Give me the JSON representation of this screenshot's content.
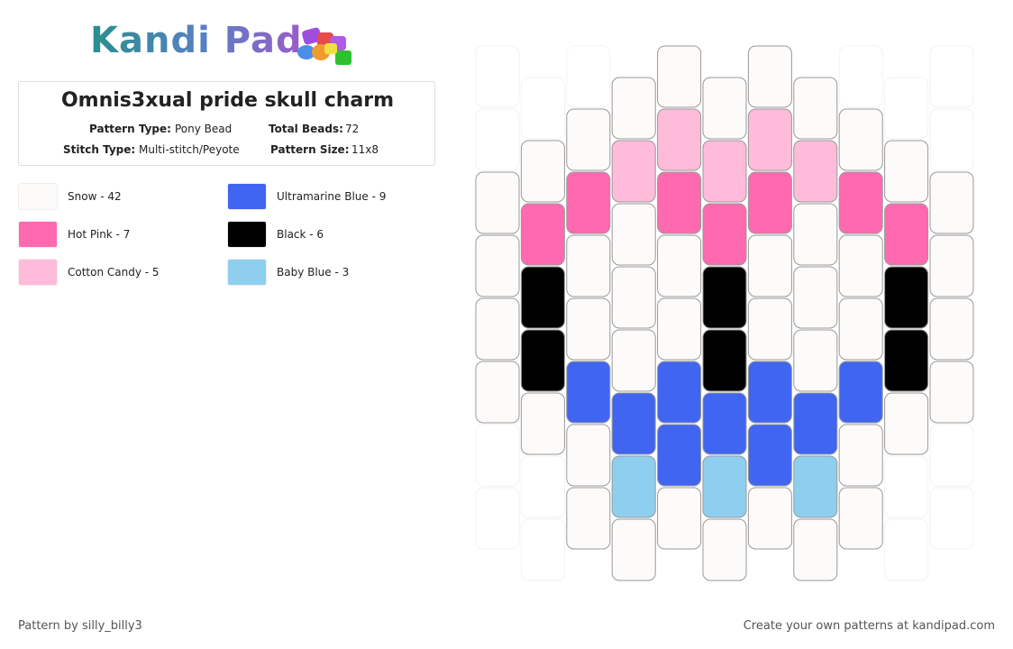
{
  "header": {
    "logo": "Kandi Pad",
    "title": "Omnis3xual pride skull charm",
    "pattern_type_label": "Pattern Type:",
    "pattern_type": "Pony Bead",
    "total_beads_label": "Total Beads:",
    "total_beads": 72,
    "stitch_type_label": "Stitch Type:",
    "stitch_type": "Multi-stitch/Peyote",
    "pattern_size_label": "Pattern Size:",
    "pattern_size": "11x8"
  },
  "legend": [
    {
      "label": "Snow - 42",
      "color": "#fdfbfa"
    },
    {
      "label": "Hot Pink - 7",
      "color": "#ff69b0"
    },
    {
      "label": "Cotton Candy - 5",
      "color": "#ffbbda"
    },
    {
      "label": "Ultramarine Blue - 9",
      "color": "#4065f0"
    },
    {
      "label": "Black - 6",
      "color": "#000000"
    },
    {
      "label": "Baby Blue - 3",
      "color": "#8ecff0"
    }
  ],
  "footer": {
    "left": "Pattern by silly_billy3",
    "right": "Create your own patterns at kandipad.com"
  }
}
